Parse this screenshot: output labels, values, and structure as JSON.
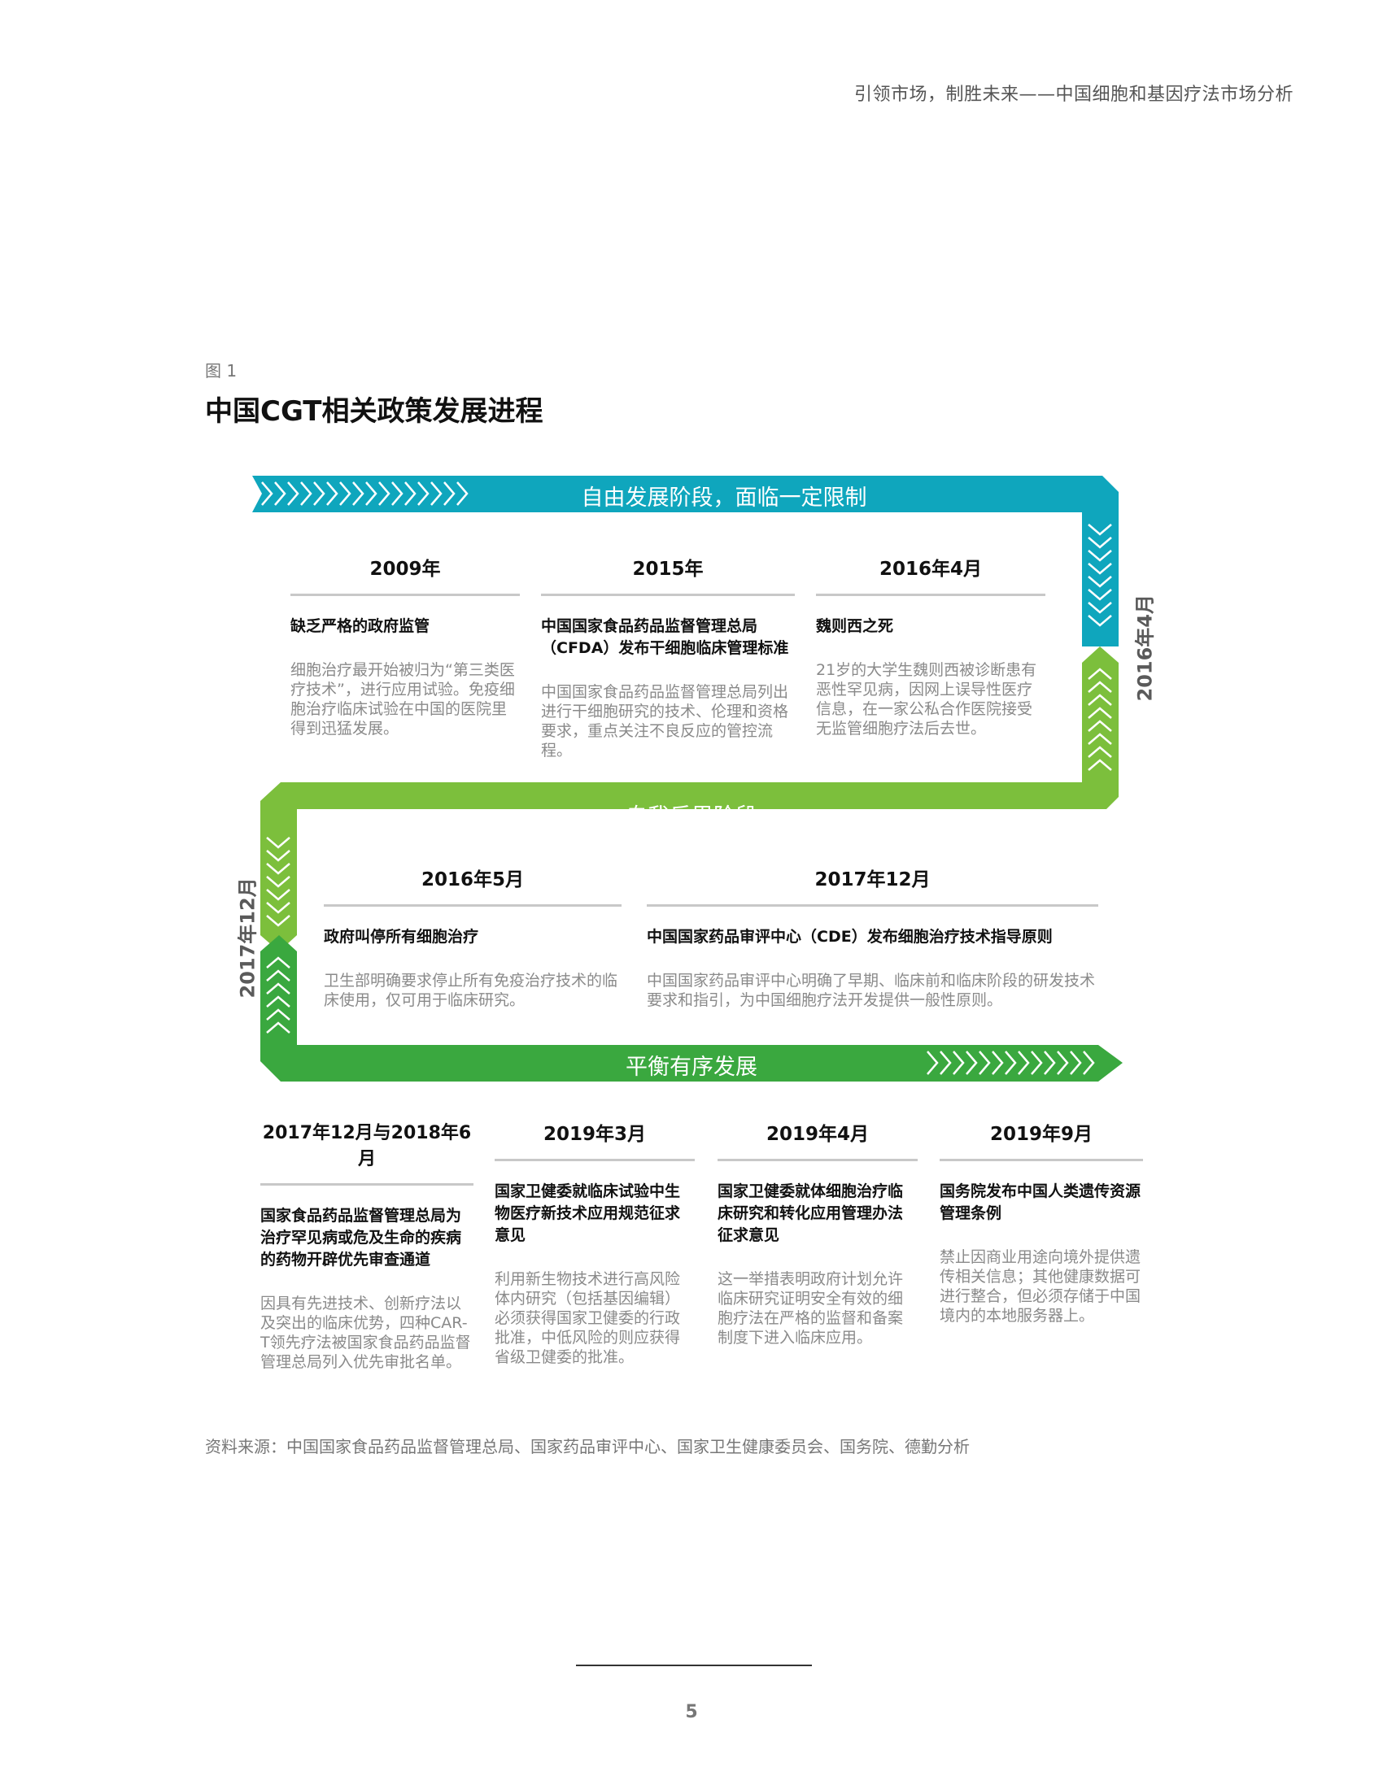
{
  "header": {
    "text": "引领市场，制胜未来——中国细胞和基因疗法市场分析"
  },
  "figure": {
    "label": "图 1",
    "title": "中国CGT相关政策发展进程"
  },
  "colors": {
    "teal": "#0fa6bd",
    "green_light": "#7cbf3c",
    "green": "#3aa83f"
  },
  "stages": {
    "stage1": "自由发展阶段，面临一定限制",
    "stage2": "自我反思阶段",
    "stage3": "平衡有序发展"
  },
  "side_labels": {
    "right": "2016年4月",
    "left": "2017年12月"
  },
  "row1": [
    {
      "date": "2009年",
      "title": "缺乏严格的政府监管",
      "body": "细胞治疗最开始被归为“第三类医疗技术”，进行应用试验。免疫细胞治疗临床试验在中国的医院里得到迅猛发展。"
    },
    {
      "date": "2015年",
      "title": "中国国家食品药品监督管理总局（CFDA）发布干细胞临床管理标准",
      "body": "中国国家食品药品监督管理总局列出进行干细胞研究的技术、伦理和资格要求，重点关注不良反应的管控流程。"
    },
    {
      "date": "2016年4月",
      "title": "魏则西之死",
      "body": "21岁的大学生魏则西被诊断患有恶性罕见病，因网上误导性医疗信息，在一家公私合作医院接受无监管细胞疗法后去世。"
    }
  ],
  "row2": [
    {
      "date": "2016年5月",
      "title": "政府叫停所有细胞治疗",
      "body": "卫生部明确要求停止所有免疫治疗技术的临床使用，仅可用于临床研究。"
    },
    {
      "date": "2017年12月",
      "title": "中国国家药品审评中心（CDE）发布细胞治疗技术指导原则",
      "body": "中国国家药品审评中心明确了早期、临床前和临床阶段的研发技术要求和指引，为中国细胞疗法开发提供一般性原则。"
    }
  ],
  "row3": [
    {
      "date": "2017年12月与2018年6月",
      "title": "国家食品药品监督管理总局为治疗罕见病或危及生命的疾病的药物开辟优先审查通道",
      "body": "因具有先进技术、创新疗法以及突出的临床优势，四种CAR-T领先疗法被国家食品药品监督管理总局列入优先审批名单。"
    },
    {
      "date": "2019年3月",
      "title": "国家卫健委就临床试验中生物医疗新技术应用规范征求意见",
      "body": "利用新生物技术进行高风险体内研究（包括基因编辑）必须获得国家卫健委的行政批准，中低风险的则应获得省级卫健委的批准。"
    },
    {
      "date": "2019年4月",
      "title": "国家卫健委就体细胞治疗临床研究和转化应用管理办法征求意见",
      "body": "这一举措表明政府计划允许临床研究证明安全有效的细胞疗法在严格的监督和备案制度下进入临床应用。"
    },
    {
      "date": "2019年9月",
      "title": "国务院发布中国人类遗传资源管理条例",
      "body": "禁止因商业用途向境外提供遗传相关信息；其他健康数据可进行整合，但必须存储于中国境内的本地服务器上。"
    }
  ],
  "source": "资料来源：中国国家食品药品监督管理总局、国家药品审评中心、国家卫生健康委员会、国务院、德勤分析",
  "page_number": "5"
}
